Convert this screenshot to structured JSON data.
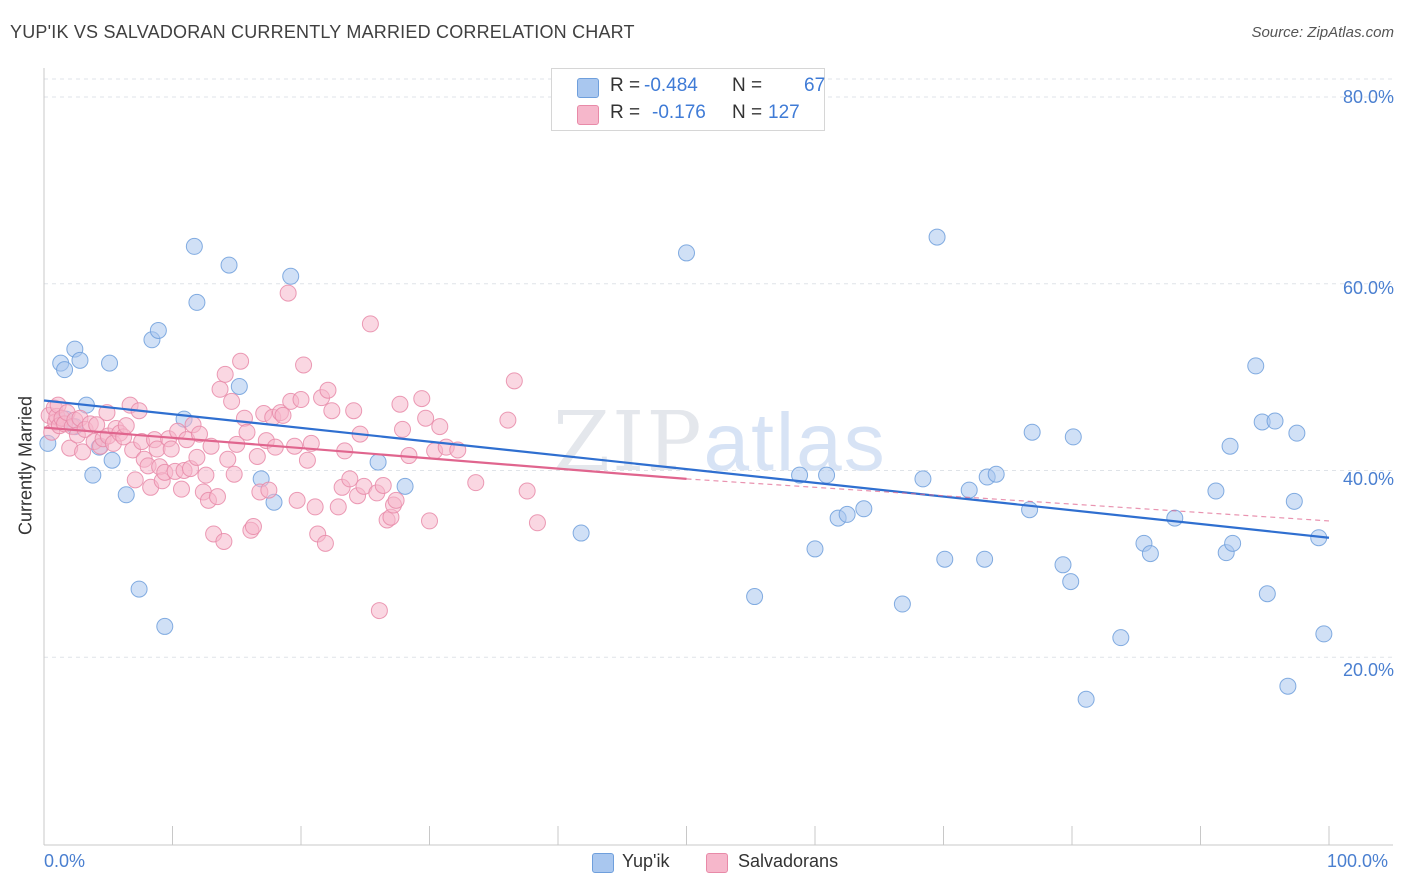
{
  "title": "YUP'IK VS SALVADORAN CURRENTLY MARRIED CORRELATION CHART",
  "source": "Source: ZipAtlas.com",
  "watermark": {
    "zip": "ZIP",
    "atlas": "atlas"
  },
  "legend": {
    "rows": [
      {
        "r_label": "R =",
        "r_value": "-0.484",
        "n_label": "N =",
        "n_value": "67",
        "color": "#a9c7ef"
      },
      {
        "r_label": "R =",
        "r_value": "-0.176",
        "n_label": "N =",
        "n_value": "127",
        "color": "#f6b7cb"
      }
    ],
    "bottom": [
      "Yup'ik",
      "Salvadorans"
    ]
  },
  "colors": {
    "blue_fill": "#a9c7ef",
    "blue_stroke": "#6f9fdc",
    "blue_line": "#2f6fd0",
    "pink_fill": "#f6b7cb",
    "pink_stroke": "#e88aa8",
    "pink_line": "#e0658e",
    "grid": "#dfe3e8",
    "axis_text": "#4a7fd0"
  },
  "chart_data": {
    "type": "scatter",
    "title": "YUP'IK VS SALVADORAN CURRENTLY MARRIED CORRELATION CHART",
    "xlabel": "",
    "ylabel": "Currently Married",
    "xlim": [
      0,
      100
    ],
    "ylim": [
      0,
      85
    ],
    "x_tick_labels": [
      "0.0%",
      "100.0%"
    ],
    "y_tick_labels": [
      "20.0%",
      "40.0%",
      "60.0%",
      "80.0%"
    ],
    "y_ticks": [
      20,
      40,
      60,
      80
    ],
    "grid": true,
    "legend_position": "top-center",
    "series": [
      {
        "name": "Yup'ik",
        "trend": {
          "x0": 0,
          "y0": 47.5,
          "x1": 100,
          "y1": 32.8
        },
        "points": [
          [
            0.3,
            42.9
          ],
          [
            1.3,
            51.5
          ],
          [
            1.6,
            50.8
          ],
          [
            2.4,
            53.0
          ],
          [
            2.8,
            51.8
          ],
          [
            3.3,
            47.0
          ],
          [
            3.8,
            39.5
          ],
          [
            4.3,
            42.5
          ],
          [
            5.1,
            51.5
          ],
          [
            5.3,
            41.1
          ],
          [
            6.4,
            37.4
          ],
          [
            7.4,
            27.3
          ],
          [
            8.4,
            54.0
          ],
          [
            8.9,
            55.0
          ],
          [
            9.4,
            23.3
          ],
          [
            10.9,
            45.5
          ],
          [
            11.7,
            64.0
          ],
          [
            11.9,
            58.0
          ],
          [
            14.4,
            62.0
          ],
          [
            15.2,
            49.0
          ],
          [
            16.9,
            39.1
          ],
          [
            17.9,
            36.6
          ],
          [
            19.2,
            60.8
          ],
          [
            26.0,
            40.9
          ],
          [
            28.1,
            38.3
          ],
          [
            41.8,
            33.3
          ],
          [
            50.0,
            63.3
          ],
          [
            55.3,
            26.5
          ],
          [
            58.8,
            39.5
          ],
          [
            60.0,
            31.6
          ],
          [
            60.9,
            39.5
          ],
          [
            61.8,
            34.9
          ],
          [
            62.5,
            35.3
          ],
          [
            63.8,
            35.9
          ],
          [
            66.8,
            25.7
          ],
          [
            68.4,
            39.1
          ],
          [
            69.5,
            65.0
          ],
          [
            70.1,
            30.5
          ],
          [
            72.0,
            37.9
          ],
          [
            73.2,
            30.5
          ],
          [
            73.4,
            39.3
          ],
          [
            74.1,
            39.6
          ],
          [
            76.7,
            35.8
          ],
          [
            76.9,
            44.1
          ],
          [
            79.3,
            29.9
          ],
          [
            79.9,
            28.1
          ],
          [
            80.1,
            43.6
          ],
          [
            81.1,
            15.5
          ],
          [
            83.8,
            22.1
          ],
          [
            85.6,
            32.2
          ],
          [
            86.1,
            31.1
          ],
          [
            88.0,
            34.9
          ],
          [
            91.2,
            37.8
          ],
          [
            92.0,
            31.2
          ],
          [
            92.3,
            42.6
          ],
          [
            92.5,
            32.2
          ],
          [
            94.3,
            51.2
          ],
          [
            94.8,
            45.2
          ],
          [
            95.2,
            26.8
          ],
          [
            95.8,
            45.3
          ],
          [
            96.8,
            16.9
          ],
          [
            97.3,
            36.7
          ],
          [
            97.5,
            44.0
          ],
          [
            99.2,
            32.8
          ],
          [
            99.6,
            22.5
          ],
          [
            1.7,
            45.5
          ],
          [
            2.4,
            44.7
          ]
        ]
      },
      {
        "name": "Salvadorans",
        "trend": {
          "x0": 0,
          "y0": 44.6,
          "x1": 50,
          "y1": 39.1
        },
        "trend_dashed": {
          "x0": 50,
          "y0": 39.1,
          "x1": 100,
          "y1": 34.6
        },
        "points": [
          [
            0.4,
            45.9
          ],
          [
            0.6,
            44.1
          ],
          [
            0.8,
            46.7
          ],
          [
            0.9,
            45.2
          ],
          [
            1.0,
            45.8
          ],
          [
            1.1,
            47.0
          ],
          [
            1.2,
            44.8
          ],
          [
            1.4,
            45.6
          ],
          [
            1.6,
            45.0
          ],
          [
            1.8,
            46.2
          ],
          [
            2.0,
            42.4
          ],
          [
            2.2,
            44.7
          ],
          [
            2.4,
            45.4
          ],
          [
            2.6,
            43.8
          ],
          [
            2.8,
            45.6
          ],
          [
            3.0,
            42.0
          ],
          [
            3.2,
            44.4
          ],
          [
            3.6,
            45.0
          ],
          [
            3.9,
            43.1
          ],
          [
            4.1,
            44.9
          ],
          [
            4.4,
            42.6
          ],
          [
            4.6,
            43.4
          ],
          [
            4.9,
            46.2
          ],
          [
            5.0,
            43.7
          ],
          [
            5.4,
            42.9
          ],
          [
            5.6,
            44.5
          ],
          [
            5.9,
            44.0
          ],
          [
            6.2,
            43.6
          ],
          [
            6.4,
            44.8
          ],
          [
            6.7,
            47.0
          ],
          [
            6.9,
            42.2
          ],
          [
            7.1,
            39.0
          ],
          [
            7.4,
            46.4
          ],
          [
            7.6,
            43.1
          ],
          [
            7.8,
            41.2
          ],
          [
            8.1,
            40.5
          ],
          [
            8.3,
            38.2
          ],
          [
            8.6,
            43.3
          ],
          [
            8.8,
            42.3
          ],
          [
            9.0,
            40.4
          ],
          [
            9.2,
            38.9
          ],
          [
            9.4,
            39.8
          ],
          [
            9.7,
            43.4
          ],
          [
            9.9,
            42.3
          ],
          [
            10.2,
            39.9
          ],
          [
            10.4,
            44.2
          ],
          [
            10.7,
            38.0
          ],
          [
            10.9,
            40.0
          ],
          [
            11.1,
            43.3
          ],
          [
            11.4,
            40.2
          ],
          [
            11.6,
            44.9
          ],
          [
            11.9,
            41.4
          ],
          [
            12.1,
            43.9
          ],
          [
            12.4,
            37.7
          ],
          [
            12.6,
            39.5
          ],
          [
            12.8,
            36.8
          ],
          [
            13.0,
            42.6
          ],
          [
            13.2,
            33.2
          ],
          [
            13.5,
            37.2
          ],
          [
            13.7,
            48.7
          ],
          [
            14.0,
            32.4
          ],
          [
            14.1,
            50.3
          ],
          [
            14.3,
            41.2
          ],
          [
            14.6,
            47.4
          ],
          [
            14.8,
            39.6
          ],
          [
            15.0,
            42.8
          ],
          [
            15.3,
            51.7
          ],
          [
            15.6,
            45.6
          ],
          [
            15.8,
            44.1
          ],
          [
            16.1,
            33.6
          ],
          [
            16.3,
            34.0
          ],
          [
            16.6,
            41.5
          ],
          [
            16.8,
            37.7
          ],
          [
            17.1,
            46.1
          ],
          [
            17.3,
            43.2
          ],
          [
            17.5,
            37.9
          ],
          [
            17.8,
            45.7
          ],
          [
            18.0,
            42.5
          ],
          [
            18.4,
            46.2
          ],
          [
            18.6,
            45.9
          ],
          [
            19.0,
            59.0
          ],
          [
            19.2,
            47.4
          ],
          [
            19.5,
            42.6
          ],
          [
            19.7,
            36.8
          ],
          [
            20.0,
            47.6
          ],
          [
            20.2,
            51.3
          ],
          [
            20.5,
            41.1
          ],
          [
            20.8,
            42.9
          ],
          [
            21.1,
            36.1
          ],
          [
            21.3,
            33.2
          ],
          [
            21.6,
            47.8
          ],
          [
            21.9,
            32.2
          ],
          [
            22.1,
            48.6
          ],
          [
            22.4,
            46.4
          ],
          [
            22.9,
            36.1
          ],
          [
            23.2,
            38.2
          ],
          [
            23.4,
            42.1
          ],
          [
            23.8,
            39.1
          ],
          [
            24.1,
            46.4
          ],
          [
            24.4,
            37.3
          ],
          [
            24.6,
            43.9
          ],
          [
            24.9,
            38.3
          ],
          [
            25.4,
            55.7
          ],
          [
            25.9,
            37.6
          ],
          [
            26.1,
            25.0
          ],
          [
            26.4,
            38.4
          ],
          [
            26.7,
            34.7
          ],
          [
            27.0,
            35.0
          ],
          [
            27.2,
            36.3
          ],
          [
            27.4,
            36.8
          ],
          [
            27.7,
            47.1
          ],
          [
            27.9,
            44.4
          ],
          [
            28.4,
            41.6
          ],
          [
            29.4,
            47.7
          ],
          [
            29.7,
            45.6
          ],
          [
            30.0,
            34.6
          ],
          [
            30.4,
            42.1
          ],
          [
            30.8,
            44.7
          ],
          [
            31.3,
            42.5
          ],
          [
            32.2,
            42.2
          ],
          [
            33.6,
            38.7
          ],
          [
            36.1,
            45.4
          ],
          [
            36.6,
            49.6
          ],
          [
            37.6,
            37.8
          ],
          [
            38.4,
            34.4
          ]
        ]
      }
    ]
  }
}
